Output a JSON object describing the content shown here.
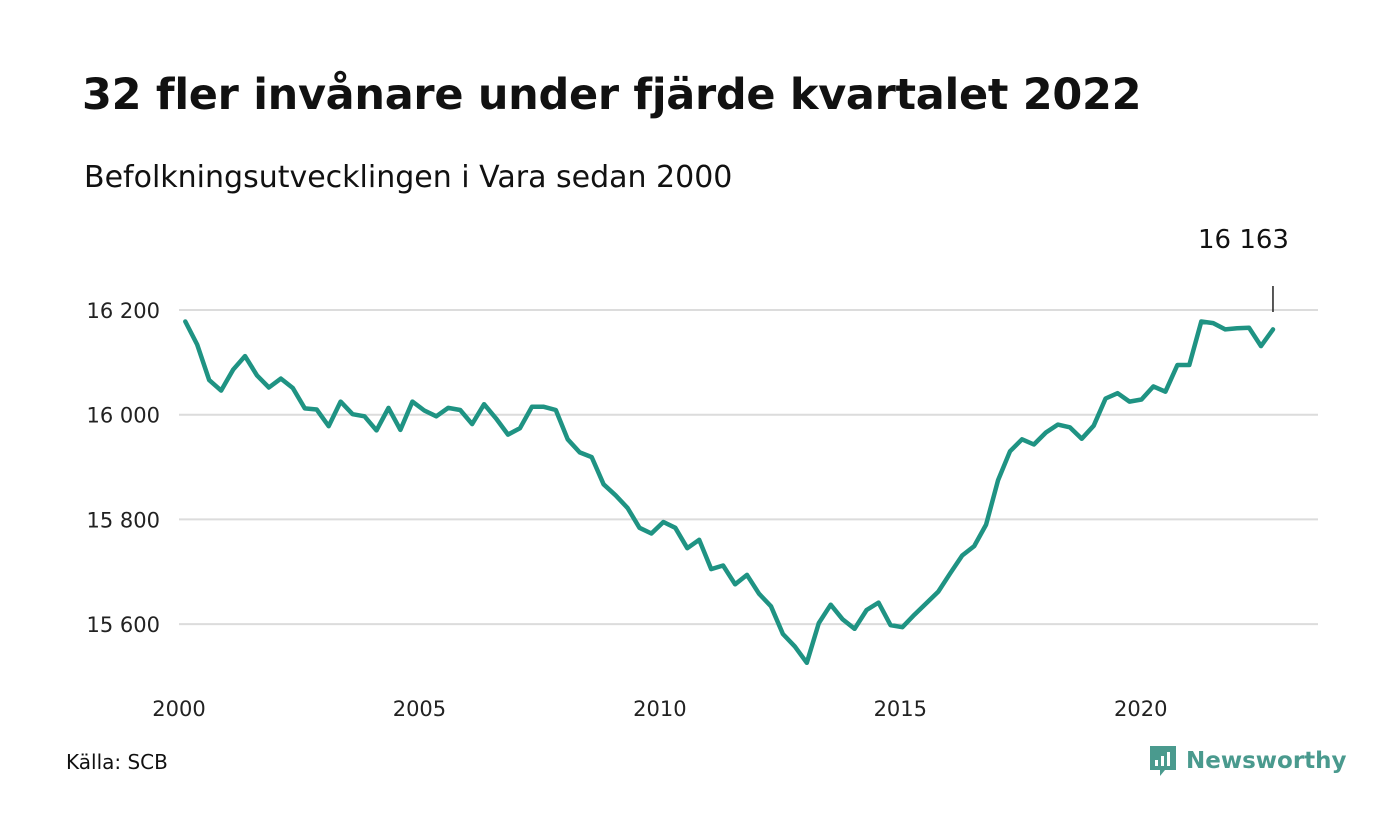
{
  "title": "32 fler invånare under fjärde kvartalet 2022",
  "subtitle": "Befolkningsutvecklingen i Vara sedan 2000",
  "source": "Källa: SCB",
  "brand": {
    "name": "Newsworthy",
    "icon": "newsworthy-logo-icon",
    "color": "#4a9a8e"
  },
  "chart_data": {
    "type": "line",
    "title": "32 fler invånare under fjärde kvartalet 2022",
    "subtitle": "Befolkningsutvecklingen i Vara sedan 2000",
    "xlabel": "",
    "ylabel": "",
    "x_ticks": [
      "2000",
      "2005",
      "2010",
      "2015",
      "2020"
    ],
    "y_ticks": [
      15600,
      15800,
      16000,
      16200
    ],
    "y_tick_labels": [
      "15 600",
      "15 800",
      "16 000",
      "16 200"
    ],
    "ylim": [
      15520,
      16210
    ],
    "xlim": [
      2000.0,
      2023.0
    ],
    "grid": "horizontal",
    "line_color": "#1f9383",
    "annotation": {
      "label": "16 163",
      "x": 2022.75,
      "y": 16163
    },
    "series": [
      {
        "values": [
          16178,
          16134,
          16066,
          16046,
          16086,
          16112,
          16075,
          16052,
          16069,
          16051,
          16012,
          16010,
          15978,
          16025,
          16001,
          15997,
          15970,
          16013,
          15971,
          16025,
          16008,
          15997,
          16013,
          16009,
          15982,
          16020,
          15993,
          15962,
          15974,
          16015,
          16015,
          16009,
          15953,
          15928,
          15919,
          15867,
          15846,
          15822,
          15784,
          15773,
          15795,
          15784,
          15745,
          15761,
          15705,
          15712,
          15676,
          15694,
          15658,
          15634,
          15581,
          15557,
          15526,
          15602,
          15637,
          15609,
          15591,
          15627,
          15641,
          15598,
          15594,
          15618,
          15640,
          15662,
          15697,
          15731,
          15749,
          15790,
          15875,
          15930,
          15953,
          15943,
          15966,
          15981,
          15976,
          15954,
          15979,
          16031,
          16041,
          16025,
          16029,
          16054,
          16044,
          16095,
          16095,
          16178,
          16175,
          16163,
          16165,
          16166,
          16131,
          16163
        ]
      }
    ]
  }
}
